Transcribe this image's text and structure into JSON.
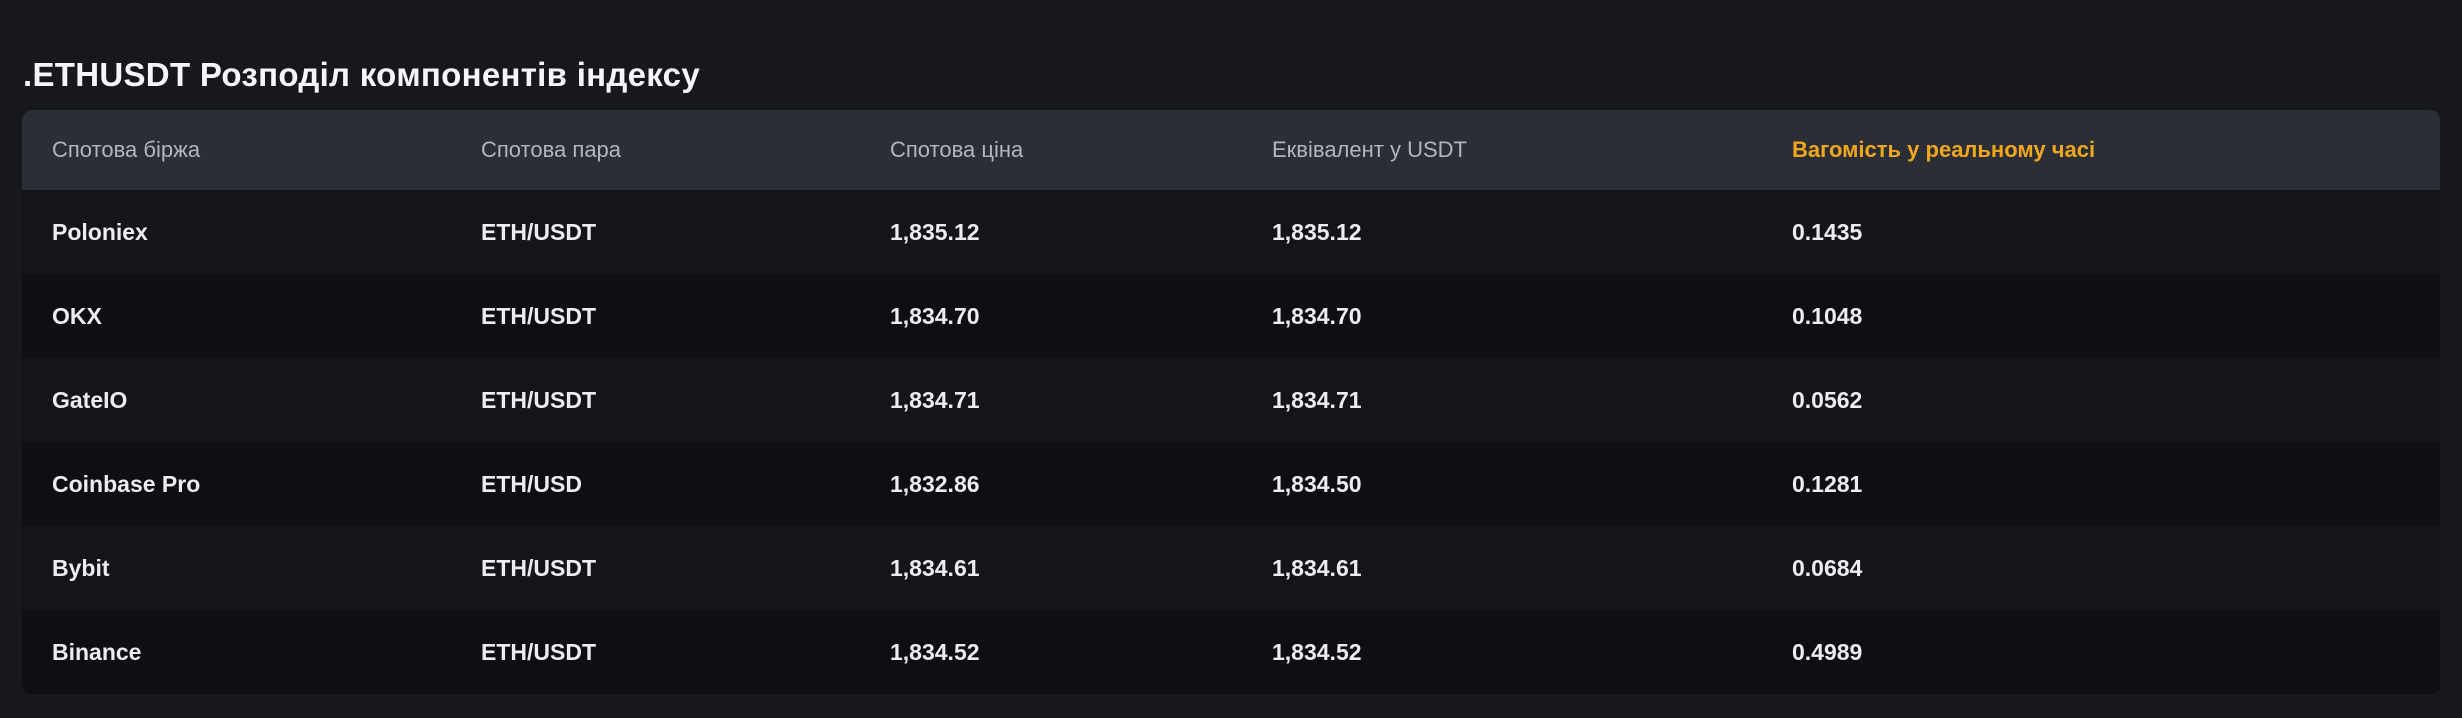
{
  "page": {
    "title": ".ETHUSDT Розподіл компонентів індексу"
  },
  "colors": {
    "page_bg": "#17181c",
    "header_bg": "#2b2e35",
    "row_stripe_a": "#141419",
    "row_stripe_b": "#0f0f13",
    "header_text": "#b0b6c0",
    "cell_text": "#ebedf0",
    "accent_yellow": "#f0a71c"
  },
  "table": {
    "columns": [
      {
        "key": "exchange",
        "label": "Спотова біржа",
        "highlight": false
      },
      {
        "key": "pair",
        "label": "Спотова пара",
        "highlight": false
      },
      {
        "key": "price",
        "label": "Спотова ціна",
        "highlight": false
      },
      {
        "key": "equivalent",
        "label": "Еквівалент у USDT",
        "highlight": false
      },
      {
        "key": "weight",
        "label": "Вагомість у реальному часі",
        "highlight": true
      }
    ],
    "rows": [
      {
        "exchange": "Poloniex",
        "pair": "ETH/USDT",
        "price": "1,835.12",
        "equivalent": "1,835.12",
        "weight": "0.1435"
      },
      {
        "exchange": "OKX",
        "pair": "ETH/USDT",
        "price": "1,834.70",
        "equivalent": "1,834.70",
        "weight": "0.1048"
      },
      {
        "exchange": "GateIO",
        "pair": "ETH/USDT",
        "price": "1,834.71",
        "equivalent": "1,834.71",
        "weight": "0.0562"
      },
      {
        "exchange": "Coinbase Pro",
        "pair": "ETH/USD",
        "price": "1,832.86",
        "equivalent": "1,834.50",
        "weight": "0.1281"
      },
      {
        "exchange": "Bybit",
        "pair": "ETH/USDT",
        "price": "1,834.61",
        "equivalent": "1,834.61",
        "weight": "0.0684"
      },
      {
        "exchange": "Binance",
        "pair": "ETH/USDT",
        "price": "1,834.52",
        "equivalent": "1,834.52",
        "weight": "0.4989"
      }
    ]
  }
}
